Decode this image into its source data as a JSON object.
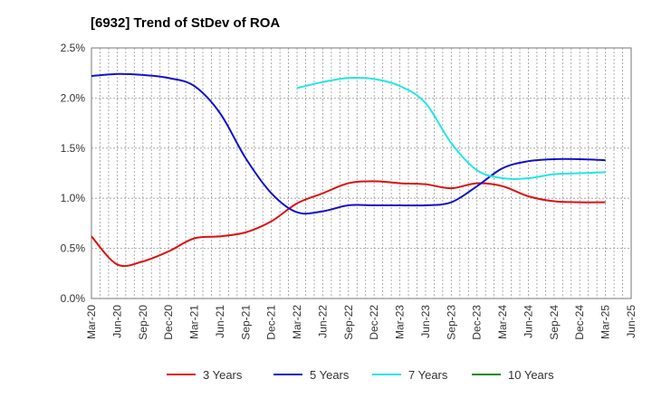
{
  "chart_data": {
    "type": "line",
    "title": "[6932]  Trend of StDev of ROA",
    "xlabel": "",
    "ylabel": "",
    "categories": [
      "Mar-20",
      "Jun-20",
      "Sep-20",
      "Dec-20",
      "Mar-21",
      "Jun-21",
      "Sep-21",
      "Dec-21",
      "Mar-22",
      "Jun-22",
      "Sep-22",
      "Dec-22",
      "Mar-23",
      "Jun-23",
      "Sep-23",
      "Dec-23",
      "Mar-24",
      "Jun-24",
      "Sep-24",
      "Dec-24",
      "Mar-25",
      "Jun-25"
    ],
    "y_ticks": [
      "0.0%",
      "0.5%",
      "1.0%",
      "1.5%",
      "2.0%",
      "2.5%"
    ],
    "ylim": [
      0,
      2.5
    ],
    "grid": true,
    "legend_position": "bottom",
    "series": [
      {
        "name": "3 Years",
        "color": "#dd1111",
        "values": [
          0.62,
          0.34,
          0.37,
          0.47,
          0.6,
          0.62,
          0.66,
          0.77,
          0.95,
          1.05,
          1.15,
          1.17,
          1.15,
          1.14,
          1.1,
          1.15,
          1.12,
          1.02,
          0.97,
          0.96,
          0.96,
          null
        ]
      },
      {
        "name": "5 Years",
        "color": "#1111cc",
        "values": [
          2.22,
          2.24,
          2.23,
          2.2,
          2.12,
          1.85,
          1.4,
          1.05,
          0.86,
          0.87,
          0.93,
          0.93,
          0.93,
          0.93,
          0.96,
          1.12,
          1.3,
          1.37,
          1.39,
          1.39,
          1.38,
          null
        ]
      },
      {
        "name": "7 Years",
        "color": "#22e5e5",
        "values": [
          null,
          null,
          null,
          null,
          null,
          null,
          null,
          null,
          2.1,
          2.16,
          2.2,
          2.19,
          2.12,
          1.95,
          1.55,
          1.28,
          1.2,
          1.2,
          1.24,
          1.25,
          1.26,
          null
        ]
      },
      {
        "name": "10 Years",
        "color": "#228822",
        "values": [
          null,
          null,
          null,
          null,
          null,
          null,
          null,
          null,
          null,
          null,
          null,
          null,
          null,
          null,
          null,
          null,
          null,
          null,
          null,
          null,
          null,
          null
        ]
      }
    ]
  }
}
